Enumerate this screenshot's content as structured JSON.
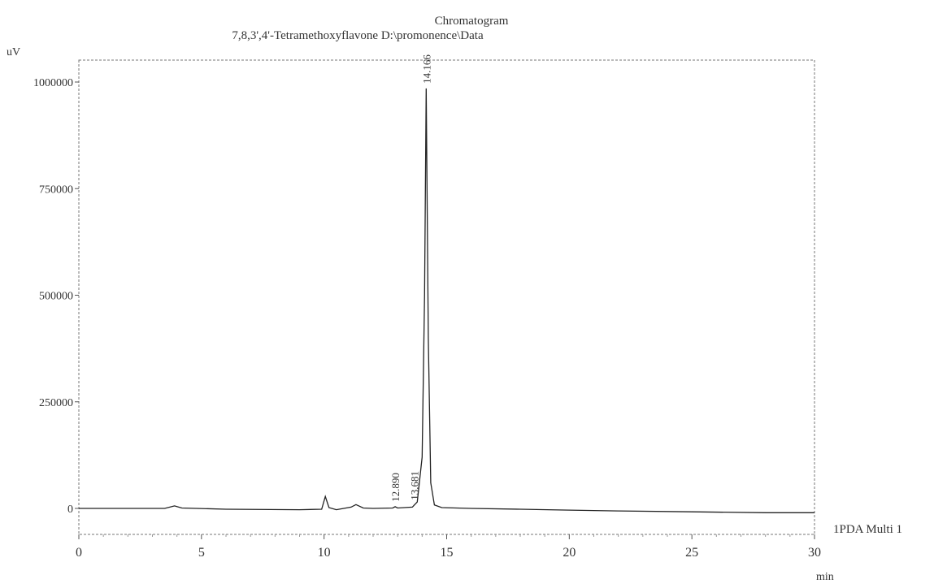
{
  "chart_data": {
    "type": "line",
    "title": "Chromatogram",
    "subtitle": "7,8,3',4'-Tetramethoxyflavone D:\\promonence\\Data",
    "ylabel": "uV",
    "xlabel": "min",
    "xlim": [
      0,
      30
    ],
    "ylim": [
      -60000,
      1030000
    ],
    "x_ticks": [
      0,
      5,
      10,
      15,
      20,
      25,
      30
    ],
    "x_tick_labels": [
      "0",
      "5",
      "10",
      "15",
      "20",
      "25",
      "30"
    ],
    "y_ticks": [
      0,
      250000,
      500000,
      750000,
      1000000
    ],
    "y_tick_labels": [
      "0",
      "250000",
      "500000",
      "750000",
      "1000000"
    ],
    "grid": false,
    "series": [
      {
        "name": "1PDA Multi 1",
        "x": [
          0,
          3.5,
          3.9,
          4.2,
          6,
          9,
          9.9,
          10.05,
          10.2,
          10.5,
          11.1,
          11.3,
          11.6,
          12,
          12.8,
          12.9,
          13.0,
          13.6,
          13.68,
          13.8,
          14.0,
          14.1,
          14.166,
          14.25,
          14.35,
          14.5,
          14.8,
          16,
          18,
          20,
          22,
          25,
          28,
          30
        ],
        "y": [
          0,
          0,
          6000,
          1000,
          -2000,
          -3000,
          -2000,
          28000,
          2000,
          -3000,
          3000,
          9000,
          1000,
          0,
          1000,
          4000,
          1000,
          3000,
          8000,
          15000,
          120000,
          500000,
          985000,
          400000,
          60000,
          8000,
          2000,
          0,
          -2000,
          -4000,
          -6000,
          -8000,
          -10000,
          -10000
        ]
      }
    ],
    "peak_labels": [
      {
        "x": 12.89,
        "y": 4000,
        "text": "12.890"
      },
      {
        "x": 13.681,
        "y": 8000,
        "text": "13.681"
      },
      {
        "x": 14.166,
        "y": 985000,
        "text": "14.166"
      }
    ],
    "legend": {
      "text": "1PDA Multi 1",
      "placement": "right"
    }
  }
}
